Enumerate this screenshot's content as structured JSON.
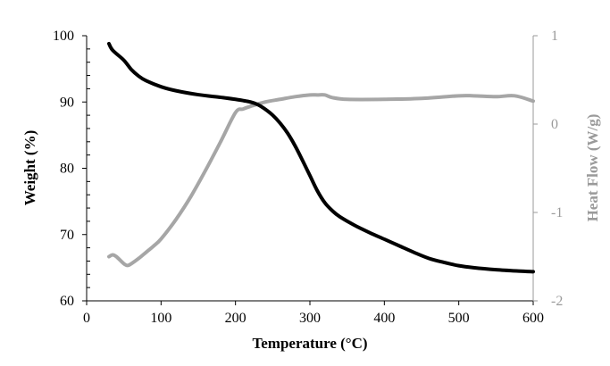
{
  "chart_data": {
    "type": "line",
    "xlabel": "Temperature (°C)",
    "ylabel": "Weight (%)",
    "y2label": "Heat Flow (W/g)",
    "xlim": [
      0,
      600
    ],
    "ylim": [
      60,
      100
    ],
    "y2lim": [
      -2,
      1
    ],
    "x_ticks": [
      "0",
      "100",
      "200",
      "300",
      "400",
      "500",
      "600"
    ],
    "y_ticks": [
      "60",
      "70",
      "80",
      "90",
      "100"
    ],
    "y2_ticks": [
      "-2",
      "-1",
      "0",
      "1"
    ],
    "grid": false,
    "series": [
      {
        "axis": "left",
        "color": "#000000",
        "x": [
          30,
          35,
          50,
          60,
          70,
          80,
          100,
          120,
          150,
          180,
          200,
          220,
          230,
          240,
          250,
          260,
          270,
          280,
          290,
          300,
          310,
          320,
          330,
          340,
          360,
          380,
          400,
          420,
          440,
          460,
          480,
          500,
          520,
          550,
          580,
          600
        ],
        "values": [
          98.8,
          97.8,
          96.3,
          94.9,
          93.9,
          93.2,
          92.3,
          91.7,
          91.1,
          90.7,
          90.4,
          90.0,
          89.6,
          88.9,
          88.0,
          86.8,
          85.3,
          83.4,
          81.2,
          78.9,
          76.6,
          74.8,
          73.6,
          72.7,
          71.4,
          70.3,
          69.3,
          68.3,
          67.3,
          66.4,
          65.8,
          65.3,
          65.0,
          64.7,
          64.5,
          64.4
        ]
      },
      {
        "axis": "right",
        "color": "#a6a6a6",
        "x": [
          30,
          35,
          40,
          50,
          55,
          60,
          70,
          80,
          90,
          100,
          120,
          140,
          160,
          180,
          200,
          210,
          220,
          240,
          260,
          280,
          300,
          310,
          320,
          330,
          350,
          400,
          450,
          500,
          520,
          550,
          575,
          600
        ],
        "values": [
          -1.5,
          -1.48,
          -1.5,
          -1.58,
          -1.6,
          -1.58,
          -1.52,
          -1.45,
          -1.38,
          -1.3,
          -1.08,
          -0.82,
          -0.52,
          -0.2,
          0.13,
          0.17,
          0.2,
          0.25,
          0.28,
          0.31,
          0.33,
          0.33,
          0.33,
          0.3,
          0.28,
          0.28,
          0.29,
          0.32,
          0.32,
          0.31,
          0.32,
          0.26
        ]
      }
    ]
  }
}
